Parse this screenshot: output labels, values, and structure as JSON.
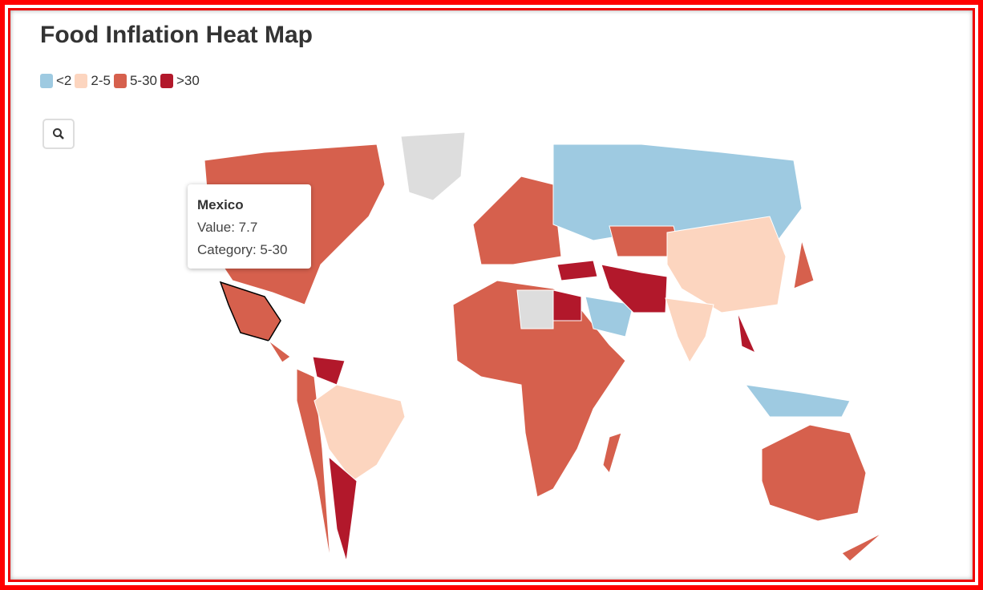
{
  "title": "Food Inflation Heat Map",
  "legend": {
    "items": [
      {
        "label": "<2",
        "color": "#9ecae1"
      },
      {
        "label": "2-5",
        "color": "#fcd5bf"
      },
      {
        "label": "5-30",
        "color": "#d6604d"
      },
      {
        "label": ">30",
        "color": "#b2182b"
      }
    ]
  },
  "tooltip": {
    "country": "Mexico",
    "value_text": "Value: 7.7",
    "category_text": "Category: 5-30"
  }
}
